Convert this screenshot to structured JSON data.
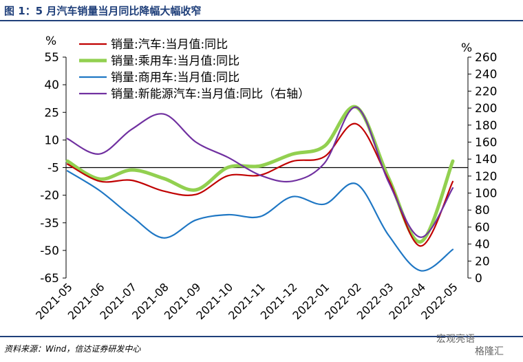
{
  "header": {
    "title": "图 1：5 月汽车销量当月同比降幅大幅收窄"
  },
  "footer": {
    "source": "资料来源：Wind，信达证券研发中心"
  },
  "watermark": {
    "left_text": "宏观亮语",
    "right_text": "格隆汇"
  },
  "chart_data": {
    "type": "line",
    "title": "",
    "left_axis": {
      "unit": "%",
      "ylim": [
        -65,
        55
      ],
      "ticks": [
        55,
        40,
        25,
        10,
        -5,
        -20,
        -35,
        -50,
        -65
      ]
    },
    "right_axis": {
      "unit": "%",
      "ylim": [
        0,
        260
      ],
      "ticks": [
        260,
        240,
        220,
        200,
        180,
        160,
        140,
        120,
        100,
        80,
        60,
        40,
        20,
        0
      ]
    },
    "x": [
      "2021-05",
      "2021-06",
      "2021-07",
      "2021-08",
      "2021-09",
      "2021-10",
      "2021-11",
      "2021-12",
      "2022-01",
      "2022-02",
      "2022-03",
      "2022-04",
      "2022-05"
    ],
    "legend_position": "top-left",
    "series": [
      {
        "name": "销量:汽车:当月值:同比",
        "axis": "left",
        "color": "#c00000",
        "width": 2.2,
        "values": [
          -3.1,
          -12.4,
          -11.9,
          -17.8,
          -19.6,
          -9.4,
          -9.1,
          -1.6,
          0.9,
          18.7,
          -11.7,
          -47.6,
          -12.6
        ]
      },
      {
        "name": "销量:乘用车:当月值:同比",
        "axis": "left",
        "color": "#92d050",
        "width": 5,
        "values": [
          -1.5,
          -11.2,
          -6.3,
          -10.9,
          -17.1,
          -4.9,
          -4.1,
          2.3,
          6.6,
          27.8,
          -10.7,
          -45.3,
          -1.5
        ]
      },
      {
        "name": "销量:商用车:当月值:同比",
        "axis": "left",
        "color": "#1f77c4",
        "width": 2.2,
        "values": [
          -6.8,
          -17.5,
          -31.5,
          -43.2,
          -33.5,
          -30.6,
          -31.6,
          -20.8,
          -24.9,
          -13.9,
          -41.8,
          -61.0,
          -49.5
        ]
      },
      {
        "name": "销量:新能源汽车:当月值:同比（右轴）",
        "axis": "right",
        "color": "#7030a0",
        "width": 2.2,
        "values": [
          164,
          146,
          175,
          193,
          160,
          142,
          121,
          114,
          135,
          201,
          113,
          48,
          106
        ]
      }
    ]
  }
}
